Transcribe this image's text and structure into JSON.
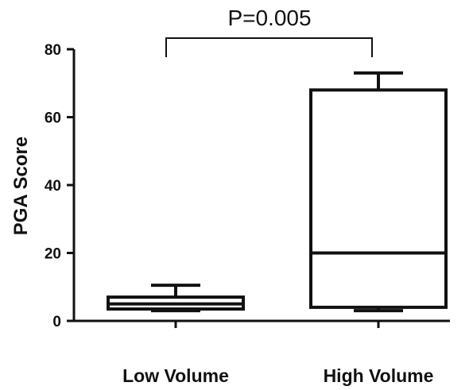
{
  "chart_data": {
    "type": "box",
    "ylabel": "PGA Score",
    "ylim": [
      0,
      80
    ],
    "yticks": [
      "0",
      "20",
      "40",
      "60",
      "80"
    ],
    "categories": [
      "Low Volume",
      "High Volume"
    ],
    "boxes": [
      {
        "category": "Low Volume",
        "min": 3,
        "q1": 3.5,
        "median": 5,
        "q3": 7,
        "max": 10.5
      },
      {
        "category": "High Volume",
        "min": 3,
        "q1": 4,
        "median": 20,
        "q3": 68,
        "max": 73
      }
    ],
    "annotation": {
      "text": "P=0.005",
      "between": [
        "Low Volume",
        "High Volume"
      ],
      "bracket_y": 80
    },
    "grid": false,
    "legend": "none"
  }
}
